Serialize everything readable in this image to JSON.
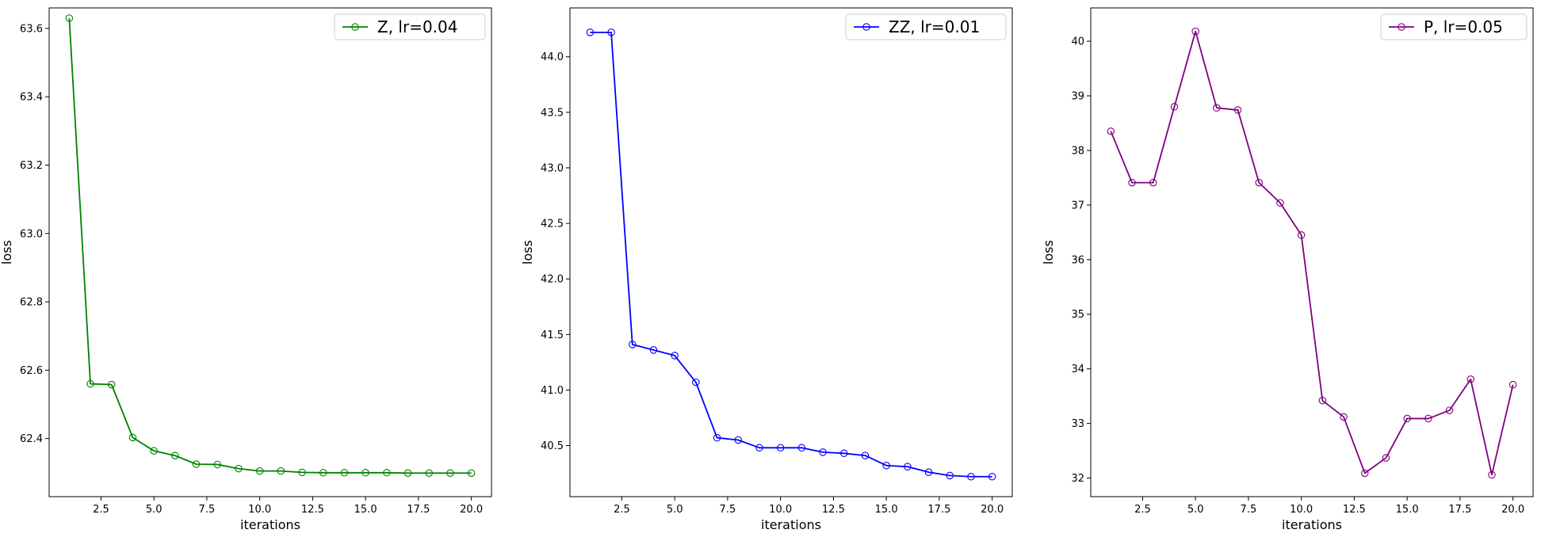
{
  "chart_data": [
    {
      "type": "line",
      "xlabel": "iterations",
      "ylabel": "loss",
      "xlim": [
        0.05,
        20.95
      ],
      "ylim": [
        62.23,
        63.66
      ],
      "xticks": [
        2.5,
        5.0,
        7.5,
        10.0,
        12.5,
        15.0,
        17.5,
        20.0
      ],
      "xtick_labels": [
        "2.5",
        "5.0",
        "7.5",
        "10.0",
        "12.5",
        "15.0",
        "17.5",
        "20.0"
      ],
      "yticks": [
        62.4,
        62.6,
        62.8,
        63.0,
        63.2,
        63.4,
        63.6
      ],
      "ytick_labels": [
        "62.4",
        "62.6",
        "62.8",
        "63.0",
        "63.2",
        "63.4",
        "63.6"
      ],
      "grid": false,
      "legend_position": "top-right",
      "series": [
        {
          "name": "Z,  lr=0.04",
          "color": "#008000",
          "marker": "open-circle",
          "x": [
            1,
            2,
            3,
            4,
            5,
            6,
            7,
            8,
            9,
            10,
            11,
            12,
            13,
            14,
            15,
            16,
            17,
            18,
            19,
            20
          ],
          "y": [
            63.63,
            62.56,
            62.558,
            62.403,
            62.364,
            62.35,
            62.325,
            62.324,
            62.312,
            62.305,
            62.305,
            62.301,
            62.3,
            62.3,
            62.3,
            62.3,
            62.299,
            62.299,
            62.299,
            62.299
          ]
        }
      ]
    },
    {
      "type": "line",
      "xlabel": "iterations",
      "ylabel": "loss",
      "xlim": [
        0.05,
        20.95
      ],
      "ylim": [
        40.04,
        44.44
      ],
      "xticks": [
        2.5,
        5.0,
        7.5,
        10.0,
        12.5,
        15.0,
        17.5,
        20.0
      ],
      "xtick_labels": [
        "2.5",
        "5.0",
        "7.5",
        "10.0",
        "12.5",
        "15.0",
        "17.5",
        "20.0"
      ],
      "yticks": [
        40.5,
        41.0,
        41.5,
        42.0,
        42.5,
        43.0,
        43.5,
        44.0
      ],
      "ytick_labels": [
        "40.5",
        "41.0",
        "41.5",
        "42.0",
        "42.5",
        "43.0",
        "43.5",
        "44.0"
      ],
      "grid": false,
      "legend_position": "top-right",
      "series": [
        {
          "name": "ZZ,  lr=0.01",
          "color": "#0000ff",
          "marker": "open-circle",
          "x": [
            1,
            2,
            3,
            4,
            5,
            6,
            7,
            8,
            9,
            10,
            11,
            12,
            13,
            14,
            15,
            16,
            17,
            18,
            19,
            20
          ],
          "y": [
            44.22,
            44.22,
            41.41,
            41.36,
            41.31,
            41.07,
            40.57,
            40.55,
            40.48,
            40.48,
            40.48,
            40.44,
            40.43,
            40.41,
            40.32,
            40.31,
            40.26,
            40.23,
            40.22,
            40.22
          ]
        }
      ]
    },
    {
      "type": "line",
      "xlabel": "iterations",
      "ylabel": "loss",
      "xlim": [
        0.05,
        20.95
      ],
      "ylim": [
        31.66,
        40.61
      ],
      "xticks": [
        2.5,
        5.0,
        7.5,
        10.0,
        12.5,
        15.0,
        17.5,
        20.0
      ],
      "xtick_labels": [
        "2.5",
        "5.0",
        "7.5",
        "10.0",
        "12.5",
        "15.0",
        "17.5",
        "20.0"
      ],
      "yticks": [
        32,
        33,
        34,
        35,
        36,
        37,
        38,
        39,
        40
      ],
      "ytick_labels": [
        "32",
        "33",
        "34",
        "35",
        "36",
        "37",
        "38",
        "39",
        "40"
      ],
      "grid": false,
      "legend_position": "top-right",
      "series": [
        {
          "name": "P,  lr=0.05",
          "color": "#800080",
          "marker": "open-circle",
          "x": [
            1,
            2,
            3,
            4,
            5,
            6,
            7,
            8,
            9,
            10,
            11,
            12,
            13,
            14,
            15,
            16,
            17,
            18,
            19,
            20
          ],
          "y": [
            38.35,
            37.41,
            37.41,
            38.8,
            40.18,
            38.78,
            38.74,
            37.41,
            37.04,
            36.45,
            33.42,
            33.12,
            32.09,
            32.37,
            33.09,
            33.09,
            33.24,
            33.81,
            32.06,
            33.71
          ]
        }
      ]
    }
  ]
}
